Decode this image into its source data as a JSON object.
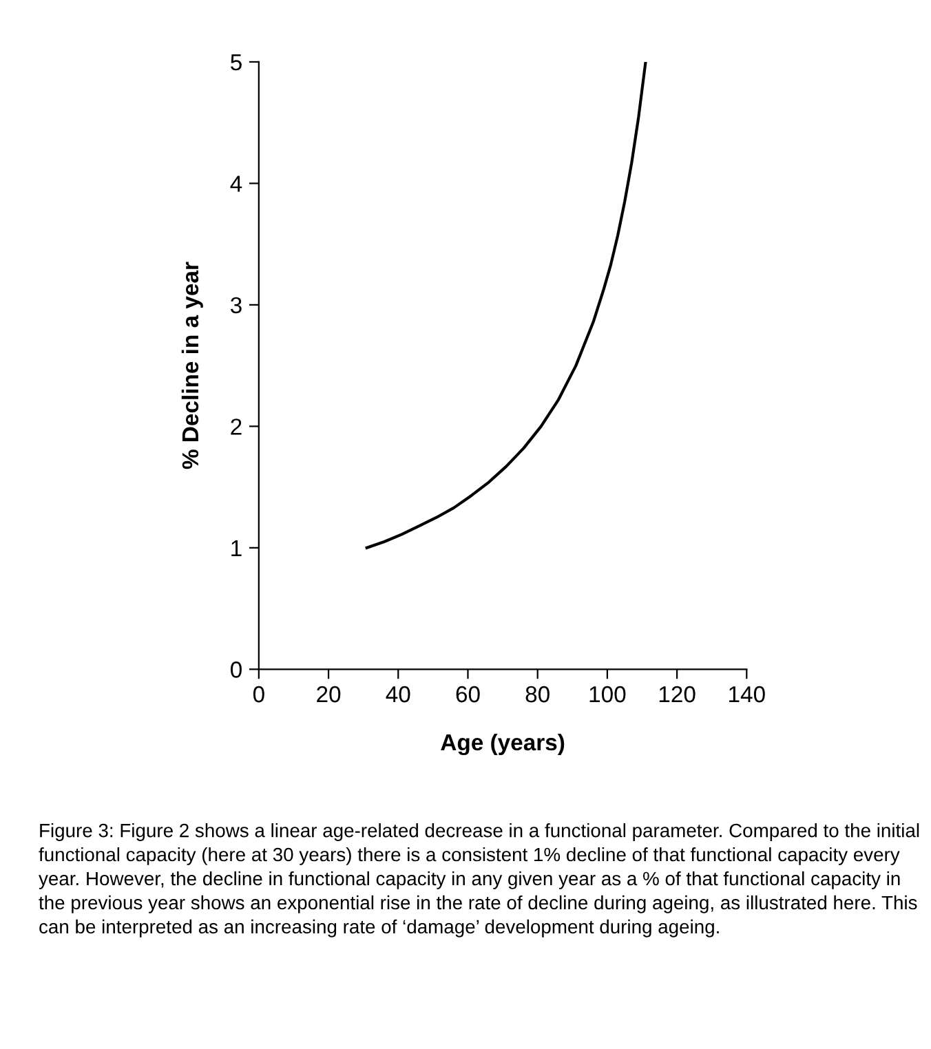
{
  "chart_data": {
    "type": "line",
    "xlabel": "Age (years)",
    "ylabel": "% Decline in a year",
    "x": [
      31,
      36,
      41,
      46,
      51,
      56,
      61,
      66,
      71,
      76,
      81,
      86,
      91,
      96,
      99,
      101,
      103,
      105,
      107,
      109,
      111
    ],
    "series": [
      {
        "color": "#000000",
        "values": [
          1.0,
          1.05,
          1.11,
          1.18,
          1.25,
          1.33,
          1.43,
          1.54,
          1.67,
          1.82,
          2.0,
          2.22,
          2.5,
          2.86,
          3.13,
          3.33,
          3.57,
          3.85,
          4.17,
          4.55,
          5.0
        ]
      }
    ],
    "xlim": [
      0,
      140
    ],
    "xticks": [
      0,
      20,
      40,
      60,
      80,
      100,
      120,
      140
    ],
    "ylim": [
      0,
      5
    ],
    "yticks": [
      0,
      1,
      2,
      3,
      4,
      5
    ],
    "annotations": [
      "Figure 3: Figure 2 shows a linear age-related decrease in a functional parameter. Compared to the initial functional capacity (here at 30 years) there is a consistent 1% decline of that functional capacity every year. However, the decline in functional capacity in any given year as a % of that functional capacity in the previous year shows an exponential rise in the rate of decline during ageing, as illustrated here. This can be interpreted as an increasing rate of ‘damage’ development during ageing."
    ]
  }
}
